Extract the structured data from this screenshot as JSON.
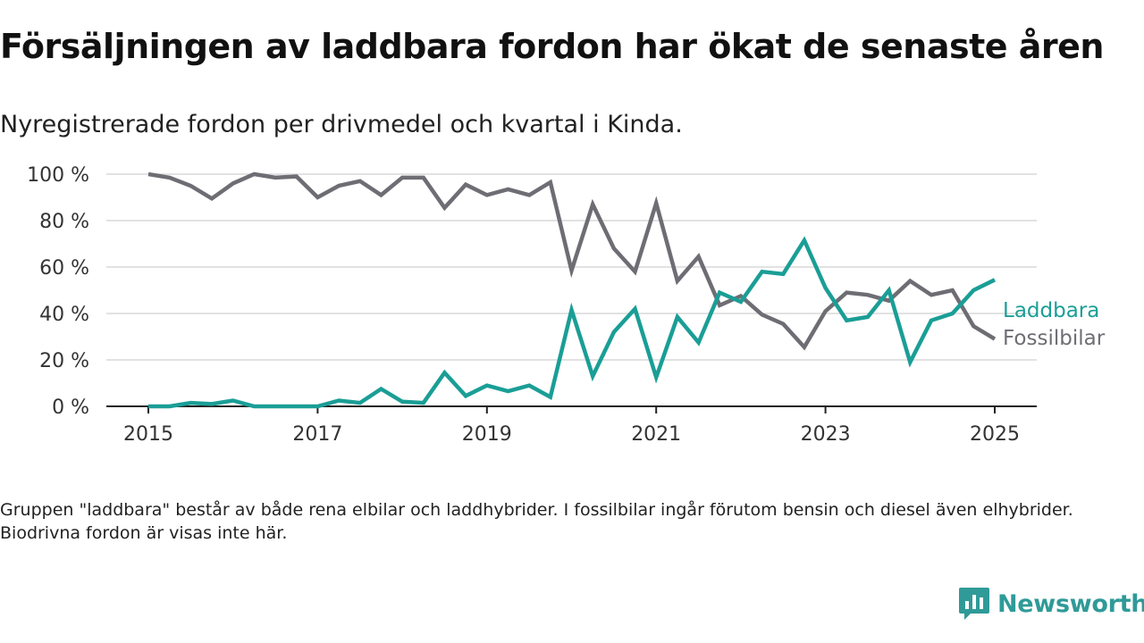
{
  "title": "Försäljningen av laddbara fordon har ökat de senaste åren",
  "subtitle": "Nyregistrerade fordon per drivmedel och kvartal i Kinda.",
  "note": "Gruppen \"laddbara\" består av både rena elbilar och laddhybrider. I fossilbilar ingår förutom bensin och diesel även elhybrider. Biodrivna fordon är visas inte här.",
  "brand": {
    "name": "Newsworthy",
    "icon": "newsworthy-logo-icon",
    "color": "#2f9a98"
  },
  "chart_data": {
    "type": "line",
    "x": [
      2015.0,
      2015.25,
      2015.5,
      2015.75,
      2016.0,
      2016.25,
      2016.5,
      2016.75,
      2017.0,
      2017.25,
      2017.5,
      2017.75,
      2018.0,
      2018.25,
      2018.5,
      2018.75,
      2019.0,
      2019.25,
      2019.5,
      2019.75,
      2020.0,
      2020.25,
      2020.5,
      2020.75,
      2021.0,
      2021.25,
      2021.5,
      2021.75,
      2022.0,
      2022.25,
      2022.5,
      2022.75,
      2023.0,
      2023.25,
      2023.5,
      2023.75,
      2024.0,
      2024.25,
      2024.5,
      2024.75,
      2025.0
    ],
    "series": [
      {
        "name": "Laddbara",
        "color": "#1a9e96",
        "values": [
          0,
          0,
          1.5,
          1,
          2.5,
          0,
          0,
          0,
          0,
          2.5,
          1.5,
          7.5,
          2,
          1.5,
          14.5,
          4.5,
          9,
          6.5,
          9,
          4,
          41.5,
          13,
          32,
          42,
          12.5,
          38.5,
          27.5,
          49,
          45,
          58,
          57,
          71.5,
          51,
          37,
          38.5,
          50,
          19,
          37,
          40,
          50,
          54.5
        ]
      },
      {
        "name": "Fossilbilar",
        "color": "#6e6d74",
        "values": [
          100,
          98.5,
          95,
          89.5,
          96,
          100,
          98.5,
          99,
          90,
          95,
          97,
          91,
          98.5,
          98.5,
          85.5,
          95.5,
          91,
          93.5,
          91,
          96.5,
          58.5,
          87,
          68,
          58,
          87.5,
          54,
          64.5,
          43.5,
          47.5,
          39.5,
          35.5,
          25.5,
          41,
          49,
          48,
          45.5,
          54,
          48,
          50,
          34.5,
          29
        ]
      }
    ],
    "y_ticks": [
      "0 %",
      "20 %",
      "40 %",
      "60 %",
      "80 %",
      "100 %"
    ],
    "x_ticks": [
      "2015",
      "2017",
      "2019",
      "2021",
      "2023",
      "2025"
    ],
    "xlim": [
      2015,
      2025
    ],
    "ylim": [
      0,
      100
    ],
    "grid": true,
    "legend": "right, at line ends"
  }
}
